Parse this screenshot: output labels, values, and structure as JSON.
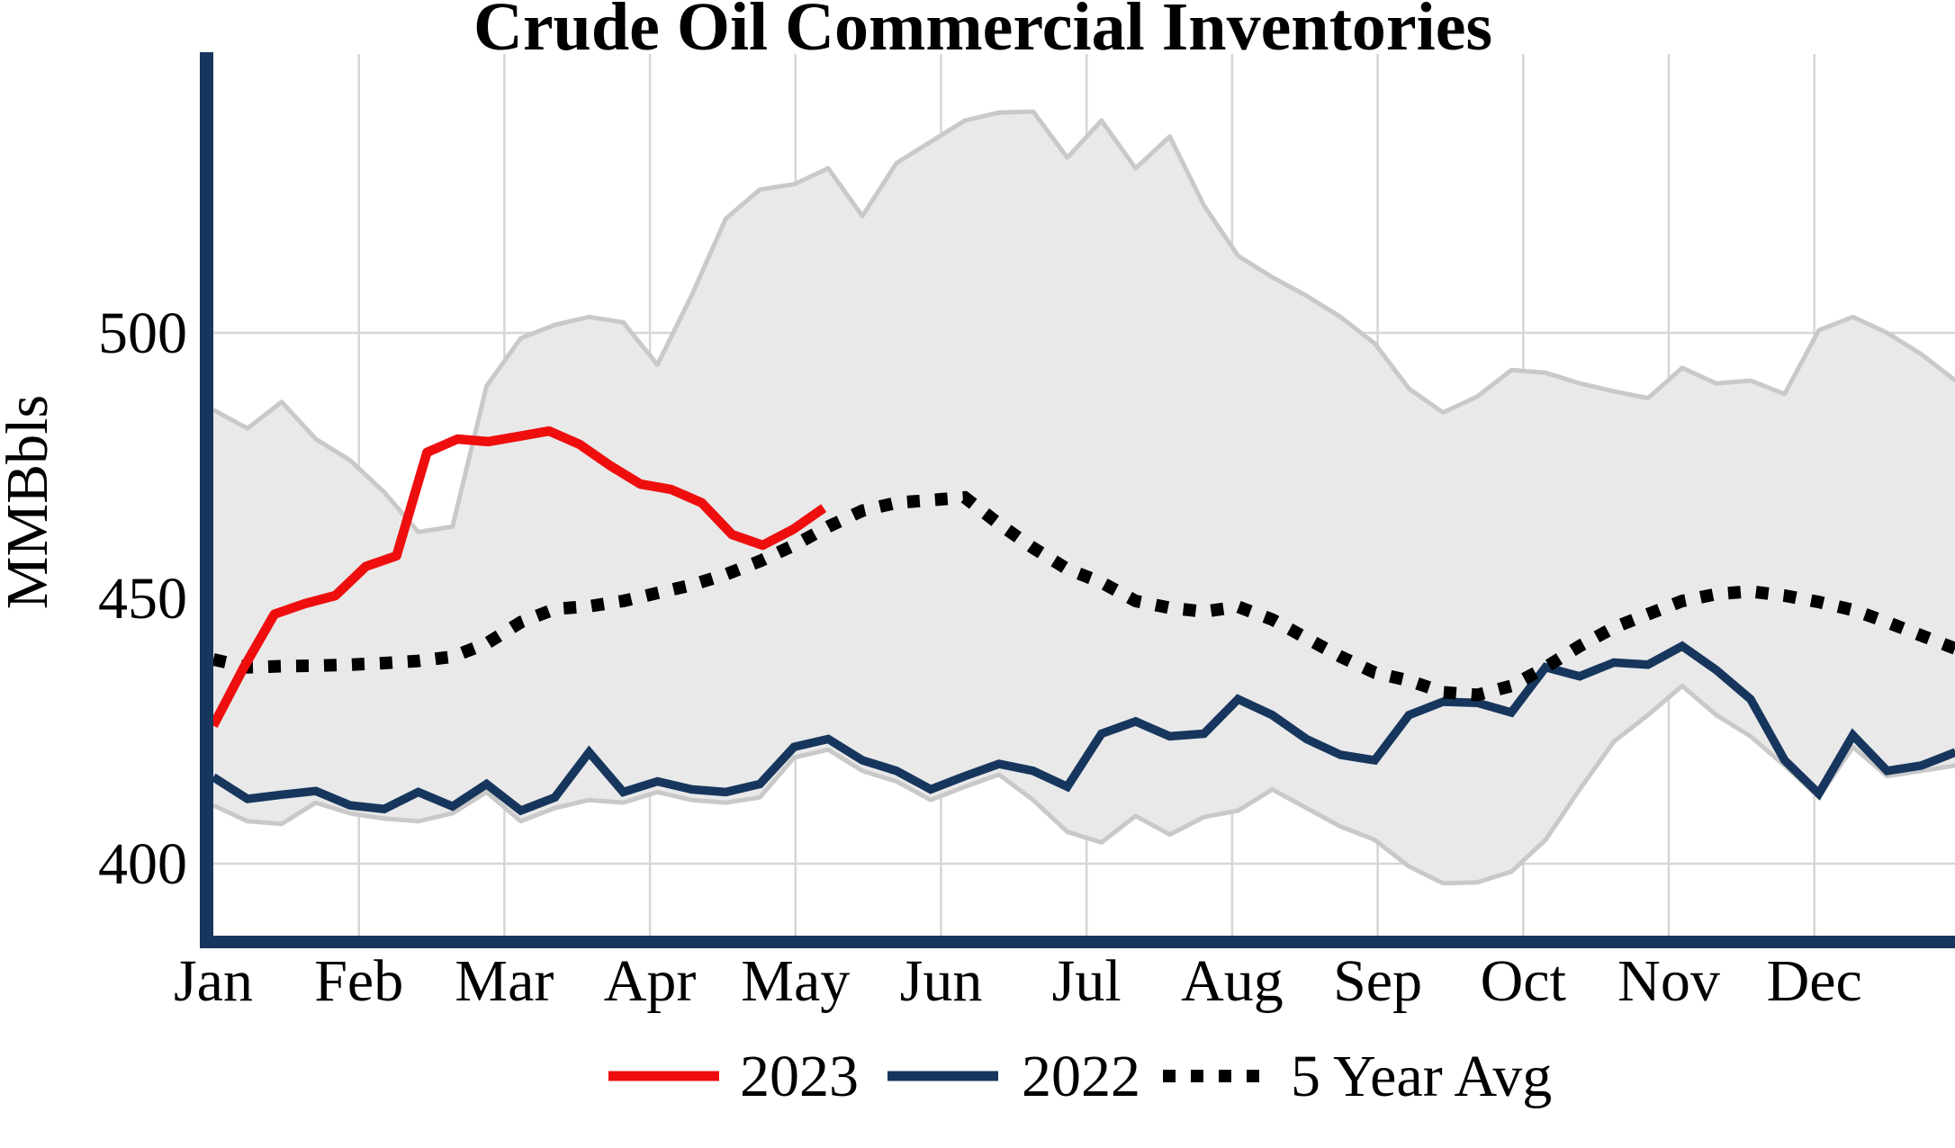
{
  "page": {
    "window_title": "Crude Oil Commercial Inventories"
  },
  "chart_data": {
    "type": "line",
    "title": "Crude Oil Commercial Inventories",
    "ylabel": "MMBbls",
    "xlabel": "",
    "grid": true,
    "legend_position": "bottom-center",
    "ylim": [
      384,
      552
    ],
    "y_ticks": [
      400,
      450,
      500
    ],
    "x_months": [
      "Jan",
      "Feb",
      "Mar",
      "Apr",
      "May",
      "Jun",
      "Jul",
      "Aug",
      "Sep",
      "Oct",
      "Nov",
      "Dec"
    ],
    "colors": {
      "series_2023": "#ef0e0e",
      "series_2022": "#17365d",
      "series_avg": "#000000",
      "band_fill": "#e9e9e9",
      "band_edge": "#c9c9c9",
      "grid": "#d6d6d6",
      "axis": "#17365d",
      "text": "#000000"
    },
    "band": {
      "name": "5-year range",
      "x_start_month": 0,
      "x_step_months": 0.2347,
      "upper": [
        485.5,
        482.0,
        487.0,
        480.0,
        476.0,
        470.0,
        462.5,
        463.5,
        490.0,
        499.0,
        501.5,
        503.0,
        502.0,
        494.0,
        507.0,
        521.5,
        527.0,
        528.0,
        531.0,
        522.0,
        532.0,
        536.0,
        540.0,
        541.5,
        541.7,
        533.0,
        540.0,
        531.0,
        537.0,
        524.0,
        514.5,
        510.5,
        507.0,
        503.0,
        498.0,
        489.5,
        485.0,
        488.0,
        493.0,
        492.5,
        490.5,
        489.0,
        487.7,
        493.4,
        490.5,
        491.0,
        488.5,
        500.5,
        503.0,
        500.0,
        496.0,
        491.0
      ],
      "lower": [
        411.0,
        408.0,
        407.5,
        411.5,
        409.5,
        408.5,
        408.0,
        409.5,
        413.5,
        408.0,
        410.5,
        412.0,
        411.5,
        413.5,
        412.0,
        411.5,
        412.5,
        420.0,
        421.5,
        417.5,
        415.5,
        412.0,
        414.5,
        416.8,
        412.0,
        406.0,
        404.0,
        409.0,
        405.5,
        408.8,
        410.0,
        414.0,
        410.5,
        407.0,
        404.5,
        399.5,
        396.3,
        396.5,
        398.5,
        404.5,
        414.0,
        423.0,
        428.0,
        433.5,
        428.0,
        424.0,
        418.5,
        412.5,
        422.0,
        416.5,
        417.5,
        418.5
      ]
    },
    "series": [
      {
        "name": "2023",
        "style": "solid",
        "color_key": "series_2023",
        "x_start_month": 0,
        "x_step_months": 0.2097,
        "values": [
          426,
          437,
          447,
          449,
          450.5,
          456,
          458,
          477.5,
          480,
          479.5,
          480.5,
          481.5,
          479,
          475,
          471.5,
          470.5,
          468,
          462,
          460,
          463,
          467
        ]
      },
      {
        "name": "2022",
        "style": "solid",
        "color_key": "series_2022",
        "x_start_month": 0,
        "x_step_months": 0.2347,
        "values": [
          416.3,
          412.2,
          413.0,
          413.7,
          411.0,
          410.3,
          413.5,
          410.8,
          415.0,
          410.0,
          412.5,
          421.0,
          413.5,
          415.5,
          414.0,
          413.5,
          415.0,
          422.0,
          423.5,
          419.5,
          417.5,
          414.0,
          416.5,
          418.8,
          417.5,
          414.5,
          424.5,
          426.8,
          424.0,
          424.5,
          431.0,
          428.0,
          423.5,
          420.5,
          419.5,
          428.0,
          430.5,
          430.3,
          428.5,
          437.0,
          435.3,
          437.9,
          437.5,
          441.0,
          436.5,
          431.0,
          419.5,
          413.2,
          424.2,
          417.5,
          418.5,
          421.0
        ]
      },
      {
        "name": "5 Year Avg",
        "style": "dotted",
        "color_key": "series_avg",
        "x_start_month": 0,
        "x_step_months": 0.2347,
        "values": [
          438.5,
          437.0,
          437.2,
          437.3,
          437.5,
          437.8,
          438.2,
          439.0,
          441.5,
          445.5,
          448.0,
          448.5,
          449.5,
          451.0,
          452.5,
          454.5,
          457.0,
          460.0,
          463.5,
          466.5,
          468.0,
          468.5,
          469.0,
          464.0,
          459.5,
          455.5,
          453.0,
          449.5,
          448.2,
          447.5,
          448.4,
          446.0,
          442.5,
          439.0,
          436.0,
          434.5,
          432.3,
          431.8,
          433.5,
          437.0,
          441.0,
          444.5,
          447.0,
          449.5,
          450.8,
          451.3,
          450.5,
          449.3,
          447.8,
          445.5,
          443.0,
          440.5
        ]
      }
    ],
    "legend": [
      "2023",
      "2022",
      "5 Year Avg"
    ]
  }
}
